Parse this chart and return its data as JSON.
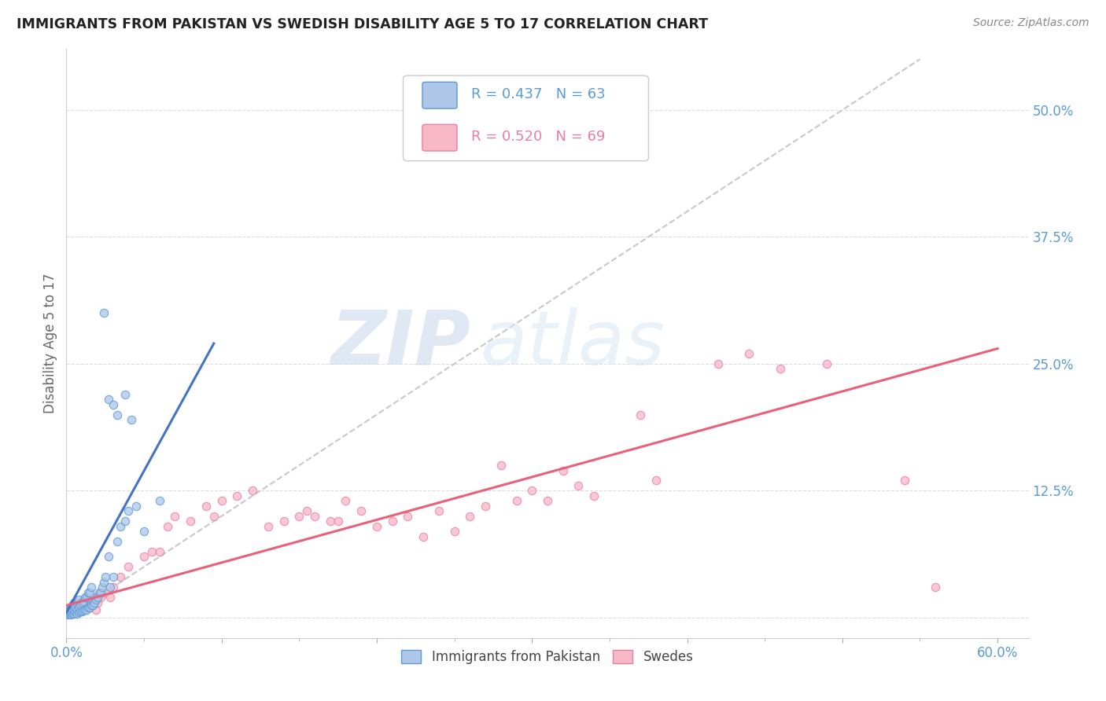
{
  "title": "IMMIGRANTS FROM PAKISTAN VS SWEDISH DISABILITY AGE 5 TO 17 CORRELATION CHART",
  "source": "Source: ZipAtlas.com",
  "ylabel": "Disability Age 5 to 17",
  "xlim": [
    0.0,
    0.62
  ],
  "ylim": [
    -0.02,
    0.56
  ],
  "color_blue_fill": "#aec6e8",
  "color_blue_edge": "#5b9bd5",
  "color_pink_fill": "#f9b8c8",
  "color_pink_edge": "#e87fa0",
  "color_blue_line": "#4472c4",
  "color_pink_line": "#e8607a",
  "color_diag": "#bbbbbb",
  "watermark_zip": "ZIP",
  "watermark_atlas": "atlas",
  "legend_r1": "R = 0.437",
  "legend_n1": "N = 63",
  "legend_r2": "R = 0.520",
  "legend_n2": "N = 69",
  "tick_color": "#5b9bd5",
  "ylabel_color": "#666666",
  "blue_line_x": [
    0.0,
    0.095
  ],
  "blue_line_y": [
    0.005,
    0.27
  ],
  "pink_line_x": [
    0.0,
    0.6
  ],
  "pink_line_y": [
    0.012,
    0.265
  ],
  "diag_line_x": [
    0.0,
    0.55
  ],
  "diag_line_y": [
    0.0,
    0.55
  ]
}
